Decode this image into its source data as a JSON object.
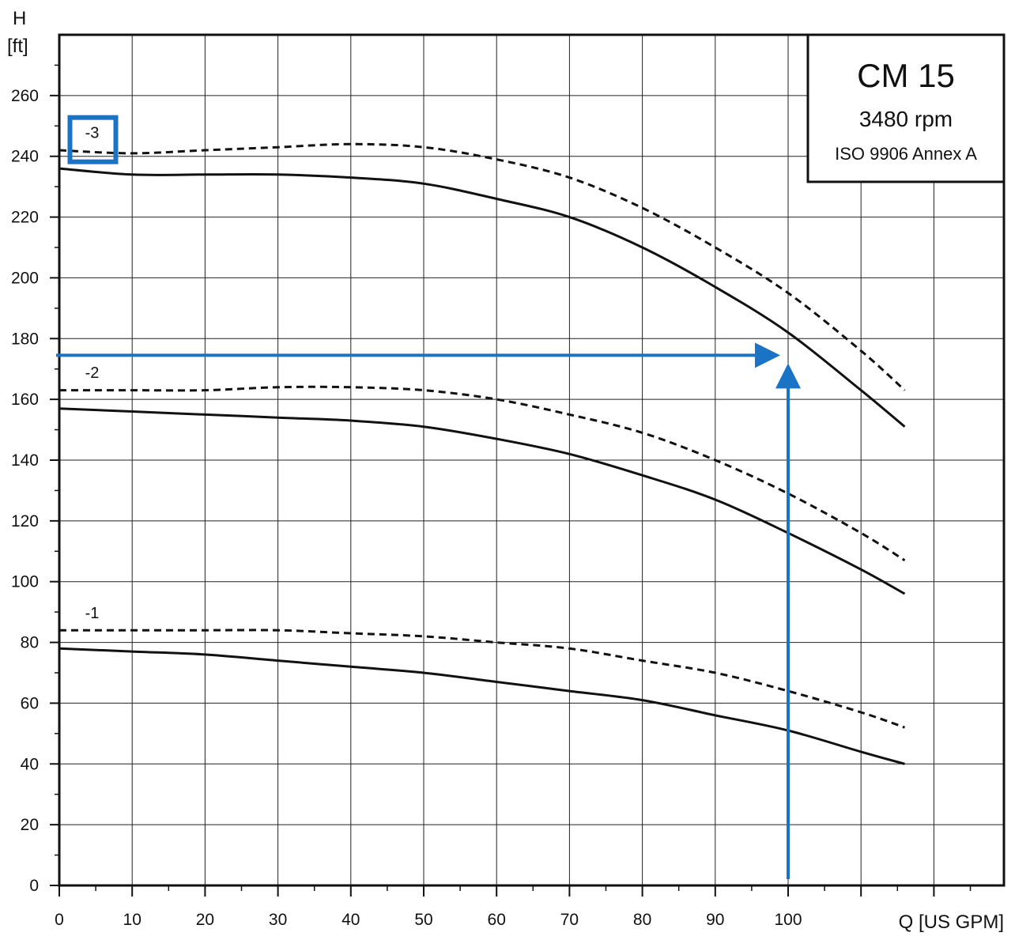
{
  "chart_data": {
    "type": "line",
    "y_axis": {
      "title_line1": "H",
      "title_line2": "[ft]",
      "range": [
        0,
        280
      ],
      "ticks": [
        0,
        20,
        40,
        60,
        80,
        100,
        120,
        140,
        160,
        180,
        200,
        220,
        240,
        260
      ]
    },
    "x_axis": {
      "title": "Q [US GPM]",
      "range": [
        0,
        130
      ],
      "ticks": [
        0,
        10,
        20,
        30,
        40,
        50,
        60,
        70,
        80,
        90,
        100
      ]
    },
    "grid": true,
    "info_box": {
      "title": "CM 15",
      "speed": "3480 rpm",
      "standard": "ISO 9906 Annex A"
    },
    "curves": [
      {
        "label": "-3",
        "highlighted": true,
        "label_anchor": [
          4.5,
          246
        ],
        "solid": [
          [
            0,
            236
          ],
          [
            10,
            234
          ],
          [
            20,
            234
          ],
          [
            30,
            234
          ],
          [
            40,
            233
          ],
          [
            50,
            231
          ],
          [
            60,
            226
          ],
          [
            70,
            220
          ],
          [
            80,
            210
          ],
          [
            90,
            197
          ],
          [
            100,
            182
          ],
          [
            110,
            163
          ],
          [
            116,
            151
          ]
        ],
        "dashed": [
          [
            0,
            242
          ],
          [
            10,
            241
          ],
          [
            20,
            242
          ],
          [
            30,
            243
          ],
          [
            40,
            244
          ],
          [
            50,
            243
          ],
          [
            60,
            239
          ],
          [
            70,
            233
          ],
          [
            80,
            223
          ],
          [
            90,
            210
          ],
          [
            100,
            195
          ],
          [
            110,
            176
          ],
          [
            116,
            163
          ]
        ]
      },
      {
        "label": "-2",
        "label_anchor": [
          4.5,
          167
        ],
        "solid": [
          [
            0,
            157
          ],
          [
            10,
            156
          ],
          [
            20,
            155
          ],
          [
            30,
            154
          ],
          [
            40,
            153
          ],
          [
            50,
            151
          ],
          [
            60,
            147
          ],
          [
            70,
            142
          ],
          [
            80,
            135
          ],
          [
            90,
            127
          ],
          [
            100,
            116
          ],
          [
            110,
            104
          ],
          [
            116,
            96
          ]
        ],
        "dashed": [
          [
            0,
            163
          ],
          [
            10,
            163
          ],
          [
            20,
            163
          ],
          [
            30,
            164
          ],
          [
            40,
            164
          ],
          [
            50,
            163
          ],
          [
            60,
            160
          ],
          [
            70,
            155
          ],
          [
            80,
            149
          ],
          [
            90,
            140
          ],
          [
            100,
            129
          ],
          [
            110,
            116
          ],
          [
            116,
            107
          ]
        ]
      },
      {
        "label": "-1",
        "label_anchor": [
          4.5,
          88
        ],
        "solid": [
          [
            0,
            78
          ],
          [
            10,
            77
          ],
          [
            20,
            76
          ],
          [
            30,
            74
          ],
          [
            40,
            72
          ],
          [
            50,
            70
          ],
          [
            60,
            67
          ],
          [
            70,
            64
          ],
          [
            80,
            61
          ],
          [
            90,
            56
          ],
          [
            100,
            51
          ],
          [
            110,
            44
          ],
          [
            116,
            40
          ]
        ],
        "dashed": [
          [
            0,
            84
          ],
          [
            10,
            84
          ],
          [
            20,
            84
          ],
          [
            30,
            84
          ],
          [
            40,
            83
          ],
          [
            50,
            82
          ],
          [
            60,
            80
          ],
          [
            70,
            78
          ],
          [
            80,
            74
          ],
          [
            90,
            70
          ],
          [
            100,
            64
          ],
          [
            110,
            57
          ],
          [
            116,
            52
          ]
        ]
      }
    ],
    "annotations": {
      "duty_flow": 100,
      "duty_head": 174.5,
      "color": "#1a73c4"
    },
    "colors": {
      "curve": "#111111",
      "grid": "#111111",
      "annotation": "#1a73c4"
    }
  }
}
